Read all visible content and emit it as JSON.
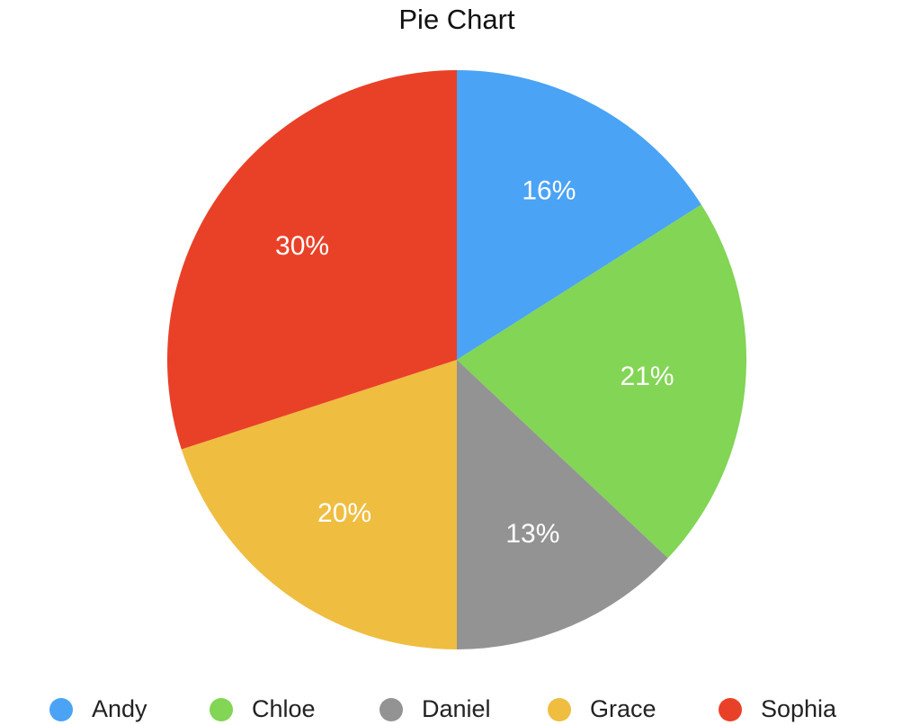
{
  "chart_data": {
    "type": "pie",
    "title": "Pie Chart",
    "categories": [
      "Andy",
      "Chloe",
      "Daniel",
      "Grace",
      "Sophia"
    ],
    "values": [
      16,
      21,
      13,
      20,
      30
    ],
    "value_labels": [
      "16%",
      "21%",
      "13%",
      "20%",
      "30%"
    ],
    "colors": [
      "#4aa3f5",
      "#82d555",
      "#939393",
      "#efbd40",
      "#e94128"
    ],
    "legend": "bottom"
  }
}
